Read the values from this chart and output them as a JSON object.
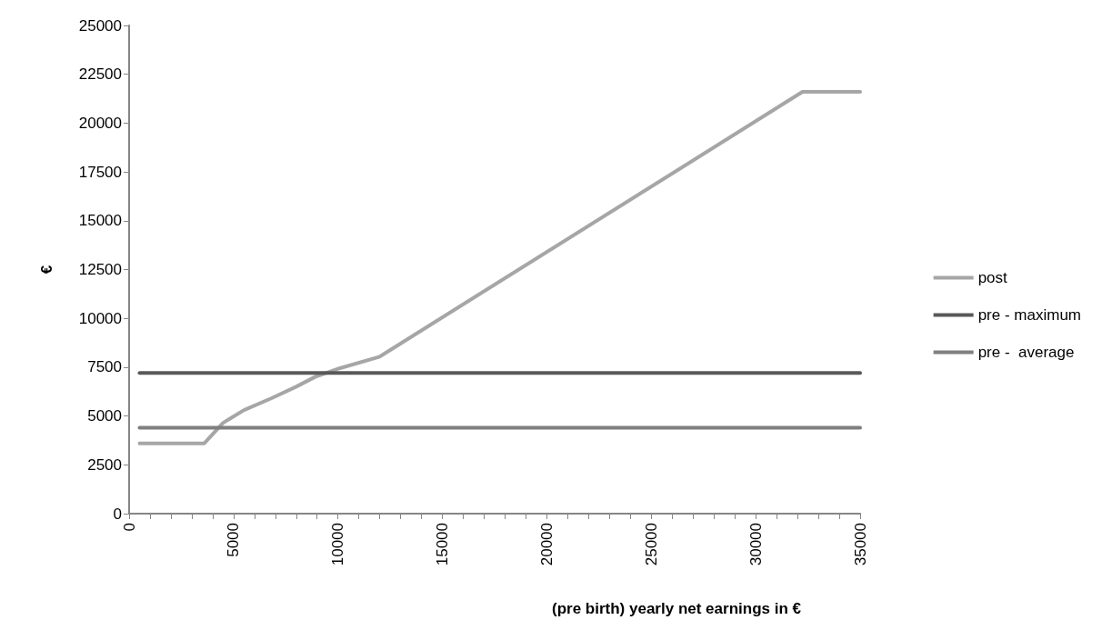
{
  "chart_data": {
    "type": "line",
    "xlabel": "(pre birth) yearly net earnings in €",
    "ylabel": "€",
    "xlim": [
      0,
      35000
    ],
    "xticks": [
      0,
      5000,
      10000,
      15000,
      20000,
      25000,
      30000,
      35000
    ],
    "ylim": [
      0,
      25000
    ],
    "yticks": [
      0,
      2500,
      5000,
      7500,
      10000,
      12500,
      15000,
      17500,
      20000,
      22500,
      25000
    ],
    "grid": false,
    "legend": "right",
    "marker": "none",
    "line_style": "solid",
    "series": [
      {
        "name": "post",
        "color": "#a6a6a6",
        "x": [
          500,
          3600,
          4500,
          5500,
          6800,
          8000,
          8900,
          10100,
          12000,
          32240,
          35000
        ],
        "values": [
          3600,
          3600,
          4650,
          5300,
          5900,
          6500,
          7000,
          7450,
          8040,
          21600,
          21600
        ]
      },
      {
        "name": "pre - maximum",
        "color": "#595959",
        "x": [
          500,
          35000
        ],
        "values": [
          7200,
          7200
        ]
      },
      {
        "name": "pre -  average",
        "color": "#7f7f7f",
        "x": [
          500,
          35000
        ],
        "values": [
          4400,
          4400
        ]
      }
    ]
  }
}
